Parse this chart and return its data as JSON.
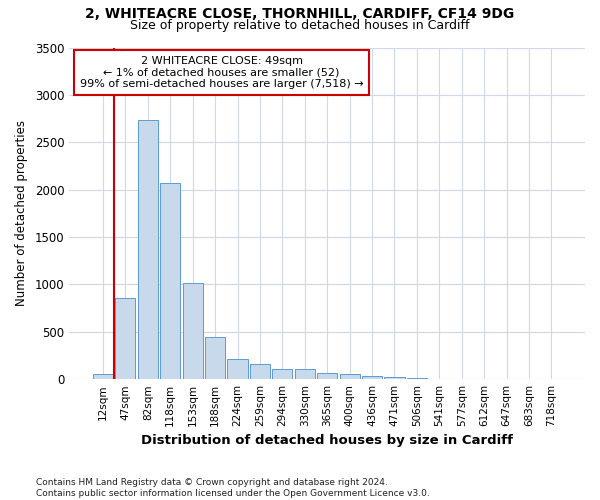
{
  "title1": "2, WHITEACRE CLOSE, THORNHILL, CARDIFF, CF14 9DG",
  "title2": "Size of property relative to detached houses in Cardiff",
  "xlabel": "Distribution of detached houses by size in Cardiff",
  "ylabel": "Number of detached properties",
  "footnote": "Contains HM Land Registry data © Crown copyright and database right 2024.\nContains public sector information licensed under the Open Government Licence v3.0.",
  "annotation_line1": "2 WHITEACRE CLOSE: 49sqm",
  "annotation_line2": "← 1% of detached houses are smaller (52)",
  "annotation_line3": "99% of semi-detached houses are larger (7,518) →",
  "bar_color": "#c9d9ec",
  "bar_edge_color": "#5b9bd5",
  "annotation_box_color": "#cc0000",
  "marker_line_color": "#cc0000",
  "categories": [
    "12sqm",
    "47sqm",
    "82sqm",
    "118sqm",
    "153sqm",
    "188sqm",
    "224sqm",
    "259sqm",
    "294sqm",
    "330sqm",
    "365sqm",
    "400sqm",
    "436sqm",
    "471sqm",
    "506sqm",
    "541sqm",
    "577sqm",
    "612sqm",
    "647sqm",
    "683sqm",
    "718sqm"
  ],
  "values": [
    55,
    855,
    2730,
    2070,
    1010,
    450,
    215,
    155,
    110,
    110,
    65,
    55,
    35,
    22,
    10,
    5,
    2,
    2,
    0,
    0,
    0
  ],
  "ylim": [
    0,
    3500
  ],
  "yticks": [
    0,
    500,
    1000,
    1500,
    2000,
    2500,
    3000,
    3500
  ],
  "bg_color": "#ffffff",
  "grid_color": "#d0d8e8"
}
